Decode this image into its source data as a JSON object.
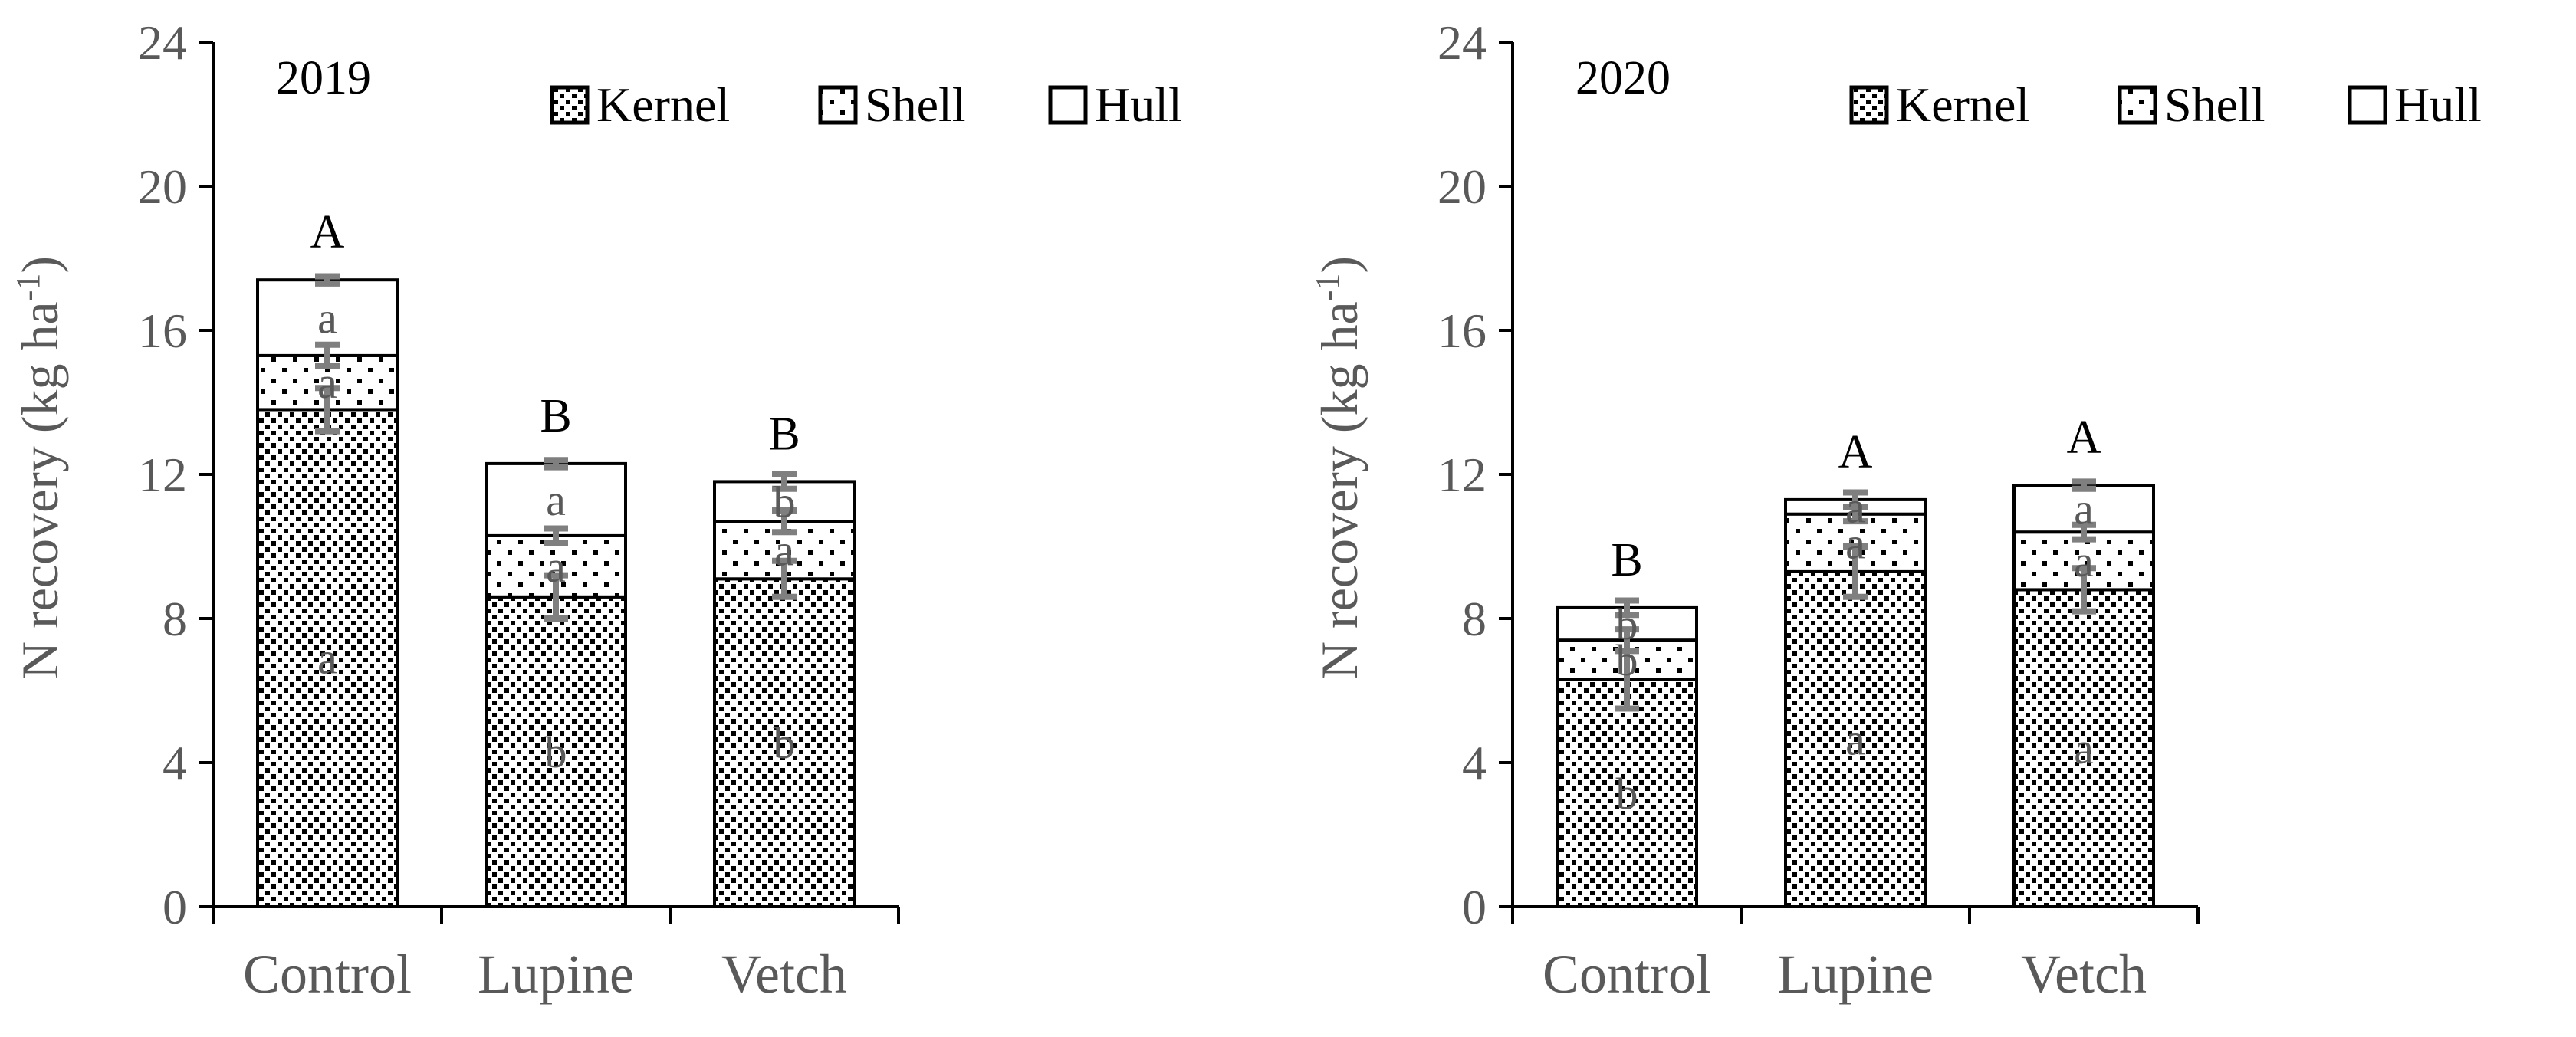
{
  "colors": {
    "axis": "#000000",
    "tick_label": "#595959",
    "error_bar": "#7f7f7f",
    "bar_fill": "#ffffff",
    "kernel_dot": "#000000",
    "shell_dot": "#000000"
  },
  "chart_data": [
    {
      "type": "bar",
      "stacked": true,
      "title": "2019",
      "xlabel": "",
      "ylabel": {
        "main": "N recovery (kg ha",
        "superscript": "-1",
        "close": ")"
      },
      "ylim": [
        0,
        24
      ],
      "yticks": [
        0,
        4,
        8,
        12,
        16,
        20,
        24
      ],
      "categories": [
        "Control",
        "Lupine",
        "Vetch"
      ],
      "legend": {
        "position": "top-right",
        "entries": [
          "Kernel",
          "Shell",
          "Hull"
        ]
      },
      "series": [
        {
          "name": "Kernel",
          "pattern": "dense-dots",
          "values": [
            13.8,
            8.6,
            9.1
          ],
          "errors": [
            0.6,
            0.6,
            0.5
          ],
          "letters": [
            "a",
            "b",
            "b"
          ]
        },
        {
          "name": "Shell",
          "pattern": "sparse-dots",
          "values": [
            1.5,
            1.7,
            1.6
          ],
          "errors": [
            0.3,
            0.2,
            0.3
          ],
          "letters": [
            "a",
            "a",
            "a"
          ]
        },
        {
          "name": "Hull",
          "pattern": "none",
          "values": [
            2.1,
            2.0,
            1.1
          ],
          "errors": [
            0.1,
            0.1,
            0.2
          ],
          "letters": [
            "a",
            "a",
            "b"
          ]
        }
      ],
      "totals_letters": [
        "A",
        "B",
        "B"
      ]
    },
    {
      "type": "bar",
      "stacked": true,
      "title": "2020",
      "xlabel": "",
      "ylabel": {
        "main": "N recovery (kg ha",
        "superscript": "-1",
        "close": ")"
      },
      "ylim": [
        0,
        24
      ],
      "yticks": [
        0,
        4,
        8,
        12,
        16,
        20,
        24
      ],
      "categories": [
        "Control",
        "Lupine",
        "Vetch"
      ],
      "legend": {
        "position": "top-right",
        "entries": [
          "Kernel",
          "Shell",
          "Hull"
        ]
      },
      "series": [
        {
          "name": "Kernel",
          "pattern": "dense-dots",
          "values": [
            6.3,
            9.3,
            8.8
          ],
          "errors": [
            0.8,
            0.7,
            0.6
          ],
          "letters": [
            "b",
            "a",
            "a"
          ]
        },
        {
          "name": "Shell",
          "pattern": "sparse-dots",
          "values": [
            1.1,
            1.6,
            1.6
          ],
          "errors": [
            0.3,
            0.2,
            0.2
          ],
          "letters": [
            "b",
            "a",
            "a"
          ]
        },
        {
          "name": "Hull",
          "pattern": "none",
          "values": [
            0.9,
            0.4,
            1.3
          ],
          "errors": [
            0.2,
            0.2,
            0.1
          ],
          "letters": [
            "b",
            "a",
            "a"
          ]
        }
      ],
      "totals_letters": [
        "B",
        "A",
        "A"
      ]
    }
  ]
}
